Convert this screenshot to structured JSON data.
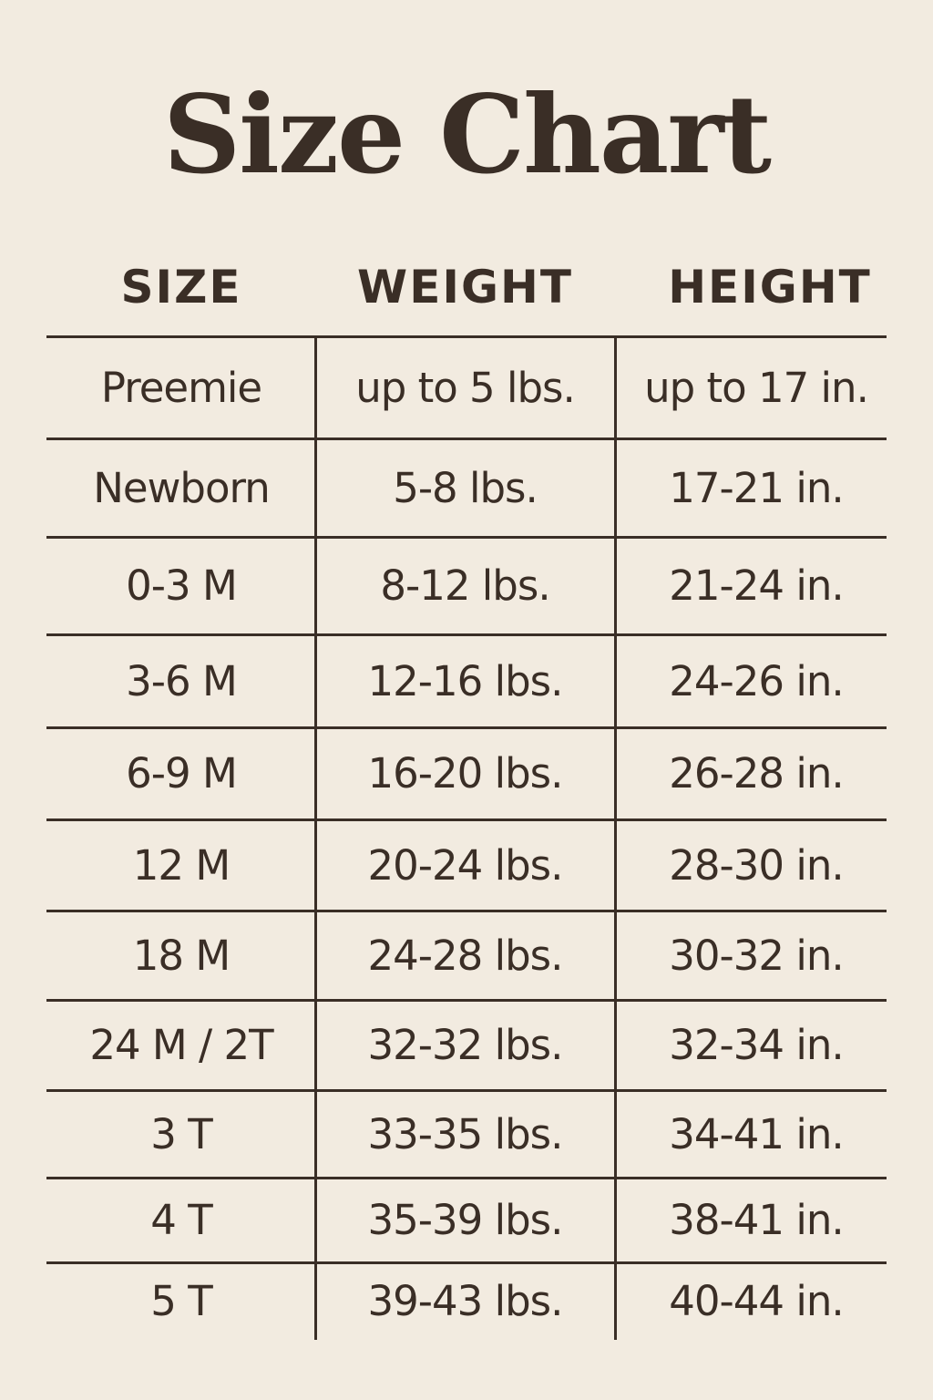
{
  "title": "Size Chart",
  "headers": [
    "SIZE",
    "WEIGHT",
    "HEIGHT"
  ],
  "rows": [
    [
      "Preemie",
      "up to 5 lbs.",
      "up to 17 in."
    ],
    [
      "Newborn",
      "5-8 lbs.",
      "17-21 in."
    ],
    [
      "0-3 M",
      "8-12 lbs.",
      "21-24 in."
    ],
    [
      "3-6 M",
      "12-16 lbs.",
      "24-26 in."
    ],
    [
      "6-9 M",
      "16-20 lbs.",
      "26-28 in."
    ],
    [
      "12 M",
      "20-24 lbs.",
      "28-30 in."
    ],
    [
      "18 M",
      "24-28 lbs.",
      "30-32 in."
    ],
    [
      "24 M / 2T",
      "32-32 lbs.",
      "32-34 in."
    ],
    [
      "3 T",
      "33-35 lbs.",
      "34-41 in."
    ],
    [
      "4 T",
      "35-39 lbs.",
      "38-41 in."
    ],
    [
      "5 T",
      "39-43 lbs.",
      "40-44 in."
    ]
  ],
  "colors": {
    "background": "#f2ebe0",
    "text": "#3a2e26"
  }
}
